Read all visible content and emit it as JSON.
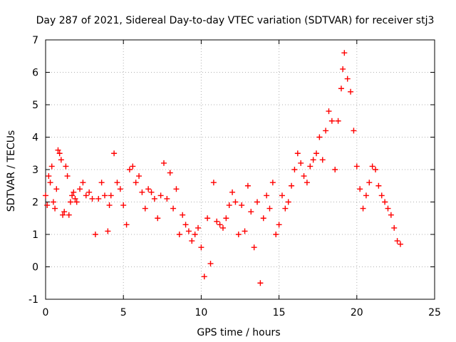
{
  "chart_data": {
    "type": "scatter",
    "title": "Day 287 of 2021, Sidereal Day-to-day VTEC variation (SDTVAR) for receiver stj3",
    "xlabel": "GPS time / hours",
    "ylabel": "SDTVAR / TECUs",
    "xlim": [
      0,
      25
    ],
    "ylim": [
      -1,
      7
    ],
    "xticks": [
      "0",
      "5",
      "10",
      "15",
      "20",
      "25"
    ],
    "yticks": [
      "-1",
      "0",
      "1",
      "2",
      "3",
      "4",
      "5",
      "6",
      "7"
    ],
    "grid": true,
    "marker": "+",
    "color": "#ff0000",
    "series": [
      {
        "name": "SDTVAR",
        "x": [
          0.0,
          0.1,
          0.2,
          0.3,
          0.4,
          0.5,
          0.6,
          0.7,
          0.8,
          0.9,
          1.0,
          1.1,
          1.2,
          1.3,
          1.4,
          1.5,
          1.6,
          1.7,
          1.8,
          1.9,
          2.0,
          2.2,
          2.4,
          2.6,
          2.8,
          3.0,
          3.2,
          3.4,
          3.6,
          3.8,
          4.0,
          4.1,
          4.2,
          4.4,
          4.6,
          4.8,
          5.0,
          5.2,
          5.4,
          5.6,
          5.8,
          6.0,
          6.2,
          6.4,
          6.6,
          6.8,
          7.0,
          7.2,
          7.4,
          7.6,
          7.8,
          8.0,
          8.2,
          8.4,
          8.6,
          8.8,
          9.0,
          9.2,
          9.4,
          9.6,
          9.8,
          10.0,
          10.2,
          10.4,
          10.6,
          10.8,
          11.0,
          11.2,
          11.4,
          11.6,
          11.8,
          12.0,
          12.2,
          12.4,
          12.6,
          12.8,
          13.0,
          13.2,
          13.4,
          13.6,
          13.8,
          14.0,
          14.2,
          14.4,
          14.6,
          14.8,
          15.0,
          15.2,
          15.4,
          15.6,
          15.8,
          16.0,
          16.2,
          16.4,
          16.6,
          16.8,
          17.0,
          17.2,
          17.4,
          17.6,
          17.8,
          18.0,
          18.2,
          18.4,
          18.6,
          18.8,
          19.0,
          19.1,
          19.2,
          19.4,
          19.6,
          19.8,
          20.0,
          20.2,
          20.4,
          20.6,
          20.8,
          21.0,
          21.2,
          21.4,
          21.6,
          21.8,
          22.0,
          22.2,
          22.4,
          22.6,
          22.8
        ],
        "y": [
          2.2,
          1.9,
          2.8,
          2.6,
          3.1,
          2.0,
          1.8,
          2.4,
          3.6,
          3.5,
          3.3,
          1.6,
          1.7,
          3.1,
          2.8,
          1.6,
          2.0,
          2.2,
          2.3,
          2.1,
          2.0,
          2.4,
          2.6,
          2.2,
          2.3,
          2.1,
          1.0,
          2.1,
          2.6,
          2.2,
          1.1,
          1.9,
          2.2,
          3.5,
          2.6,
          2.4,
          1.9,
          1.3,
          3.0,
          3.1,
          2.6,
          2.8,
          2.3,
          1.8,
          2.4,
          2.3,
          2.1,
          1.5,
          2.2,
          3.2,
          2.1,
          2.9,
          1.8,
          2.4,
          1.0,
          1.6,
          1.3,
          1.1,
          0.8,
          1.0,
          1.2,
          0.6,
          -0.3,
          1.5,
          0.1,
          2.6,
          1.4,
          1.3,
          1.2,
          1.5,
          1.9,
          2.3,
          2.0,
          1.0,
          1.9,
          1.1,
          2.5,
          1.7,
          0.6,
          2.0,
          -0.5,
          1.5,
          2.2,
          1.8,
          2.6,
          1.0,
          1.3,
          2.2,
          1.8,
          2.0,
          2.5,
          3.0,
          3.5,
          3.2,
          2.8,
          2.6,
          3.1,
          3.3,
          3.5,
          4.0,
          3.3,
          4.2,
          4.8,
          4.5,
          3.0,
          4.5,
          5.5,
          6.1,
          6.6,
          5.8,
          5.4,
          4.2,
          3.1,
          2.4,
          1.8,
          2.2,
          2.6,
          3.1,
          3.0,
          2.5,
          2.2,
          2.0,
          1.8,
          1.6,
          1.2,
          0.8,
          0.7
        ]
      }
    ]
  }
}
